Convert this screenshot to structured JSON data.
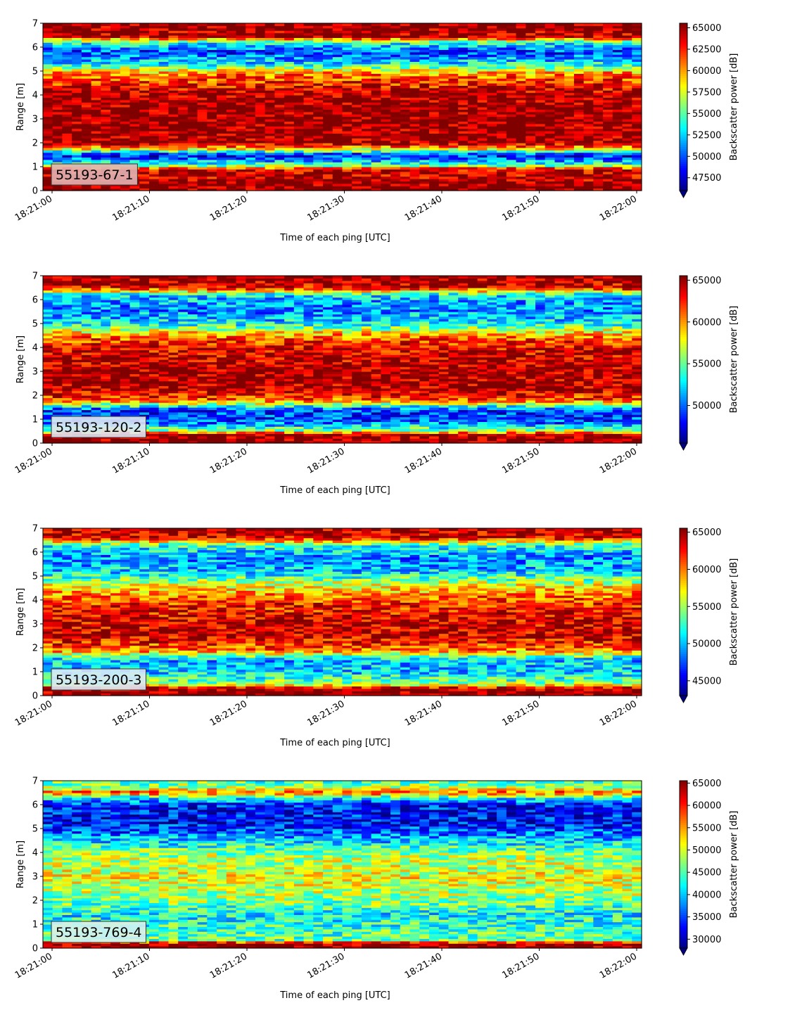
{
  "chart_data": [
    {
      "type": "heatmap",
      "panel_label": "55193-67-1",
      "label_box_color": "#e2b2b2",
      "xlabel": "Time of each ping [UTC]",
      "ylabel": "Range [m]",
      "x_ticks": [
        "18:21:00",
        "18:21:10",
        "18:21:20",
        "18:21:30",
        "18:21:40",
        "18:21:50",
        "18:22:00"
      ],
      "x_range": [
        "18:21:00",
        "18:22:00"
      ],
      "ylim": [
        0,
        7
      ],
      "y_ticks": [
        "0",
        "1",
        "2",
        "3",
        "4",
        "5",
        "6",
        "7"
      ],
      "colorbar": {
        "label": "Backscatter power [dB]",
        "colormap": "jet",
        "range": [
          46000,
          65535
        ],
        "ticks": [
          "47500",
          "50000",
          "52500",
          "55000",
          "57500",
          "60000",
          "62500",
          "65000"
        ],
        "extend": "min"
      },
      "range_profile": [
        {
          "range": 0.0,
          "value": 65535
        },
        {
          "range": 0.25,
          "value": 65535
        },
        {
          "range": 0.5,
          "value": 64500
        },
        {
          "range": 0.9,
          "value": 64000
        },
        {
          "range": 1.05,
          "value": 56000
        },
        {
          "range": 1.2,
          "value": 52500
        },
        {
          "range": 1.5,
          "value": 48500
        },
        {
          "range": 1.75,
          "value": 58500
        },
        {
          "range": 2.0,
          "value": 65000
        },
        {
          "range": 3.0,
          "value": 65500
        },
        {
          "range": 4.0,
          "value": 65000
        },
        {
          "range": 4.5,
          "value": 62500
        },
        {
          "range": 4.9,
          "value": 60500
        },
        {
          "range": 5.3,
          "value": 53500
        },
        {
          "range": 5.8,
          "value": 49500
        },
        {
          "range": 6.2,
          "value": 54000
        },
        {
          "range": 6.45,
          "value": 64500
        },
        {
          "range": 7.0,
          "value": 65535
        }
      ]
    },
    {
      "type": "heatmap",
      "panel_label": "55193-120-2",
      "label_box_color": "#dfe6f3",
      "xlabel": "Time of each ping [UTC]",
      "ylabel": "Range [m]",
      "x_ticks": [
        "18:21:00",
        "18:21:10",
        "18:21:20",
        "18:21:30",
        "18:21:40",
        "18:21:50",
        "18:22:00"
      ],
      "x_range": [
        "18:21:00",
        "18:22:00"
      ],
      "ylim": [
        0,
        7
      ],
      "y_ticks": [
        "0",
        "1",
        "2",
        "3",
        "4",
        "5",
        "6",
        "7"
      ],
      "colorbar": {
        "label": "Backscatter power [dB]",
        "colormap": "jet",
        "range": [
          45500,
          65535
        ],
        "ticks": [
          "50000",
          "55000",
          "60000",
          "65000"
        ],
        "extend": "min"
      },
      "range_profile": [
        {
          "range": 0.0,
          "value": 65535
        },
        {
          "range": 0.35,
          "value": 65000
        },
        {
          "range": 0.55,
          "value": 56000
        },
        {
          "range": 0.9,
          "value": 49500
        },
        {
          "range": 1.4,
          "value": 49000
        },
        {
          "range": 1.8,
          "value": 61000
        },
        {
          "range": 2.2,
          "value": 64500
        },
        {
          "range": 3.0,
          "value": 65000
        },
        {
          "range": 4.0,
          "value": 63500
        },
        {
          "range": 4.5,
          "value": 60500
        },
        {
          "range": 5.0,
          "value": 53000
        },
        {
          "range": 5.6,
          "value": 50500
        },
        {
          "range": 6.2,
          "value": 52500
        },
        {
          "range": 6.5,
          "value": 63500
        },
        {
          "range": 7.0,
          "value": 65535
        }
      ]
    },
    {
      "type": "heatmap",
      "panel_label": "55193-200-3",
      "label_box_color": "#d9e9f6",
      "xlabel": "Time of each ping [UTC]",
      "ylabel": "Range [m]",
      "x_ticks": [
        "18:21:00",
        "18:21:10",
        "18:21:20",
        "18:21:30",
        "18:21:40",
        "18:21:50",
        "18:22:00"
      ],
      "x_range": [
        "18:21:00",
        "18:22:00"
      ],
      "ylim": [
        0,
        7
      ],
      "y_ticks": [
        "0",
        "1",
        "2",
        "3",
        "4",
        "5",
        "6",
        "7"
      ],
      "colorbar": {
        "label": "Backscatter power [dB]",
        "colormap": "jet",
        "range": [
          43000,
          65535
        ],
        "ticks": [
          "45000",
          "50000",
          "55000",
          "60000",
          "65000"
        ],
        "extend": "min"
      },
      "range_profile": [
        {
          "range": 0.0,
          "value": 65535
        },
        {
          "range": 0.3,
          "value": 65000
        },
        {
          "range": 0.5,
          "value": 55000
        },
        {
          "range": 1.0,
          "value": 50500
        },
        {
          "range": 1.5,
          "value": 50000
        },
        {
          "range": 1.9,
          "value": 60000
        },
        {
          "range": 2.5,
          "value": 64000
        },
        {
          "range": 3.2,
          "value": 63500
        },
        {
          "range": 4.0,
          "value": 61500
        },
        {
          "range": 4.6,
          "value": 57000
        },
        {
          "range": 5.2,
          "value": 50500
        },
        {
          "range": 5.8,
          "value": 49000
        },
        {
          "range": 6.3,
          "value": 52500
        },
        {
          "range": 6.6,
          "value": 63000
        },
        {
          "range": 7.0,
          "value": 65000
        }
      ]
    },
    {
      "type": "heatmap",
      "panel_label": "55193-769-4",
      "label_box_color": "#d6f1ee",
      "xlabel": "Time of each ping [UTC]",
      "ylabel": "Range [m]",
      "x_ticks": [
        "18:21:00",
        "18:21:10",
        "18:21:20",
        "18:21:30",
        "18:21:40",
        "18:21:50",
        "18:22:00"
      ],
      "x_range": [
        "18:21:00",
        "18:22:00"
      ],
      "ylim": [
        0,
        7
      ],
      "y_ticks": [
        "0",
        "1",
        "2",
        "3",
        "4",
        "5",
        "6",
        "7"
      ],
      "colorbar": {
        "label": "Backscatter power [dB]",
        "colormap": "jet",
        "range": [
          28000,
          65535
        ],
        "ticks": [
          "30000",
          "35000",
          "40000",
          "45000",
          "50000",
          "55000",
          "60000",
          "65000"
        ],
        "extend": "min"
      },
      "range_profile": [
        {
          "range": 0.0,
          "value": 65535
        },
        {
          "range": 0.2,
          "value": 65000
        },
        {
          "range": 0.35,
          "value": 46000
        },
        {
          "range": 0.9,
          "value": 44000
        },
        {
          "range": 1.4,
          "value": 42000
        },
        {
          "range": 2.0,
          "value": 47000
        },
        {
          "range": 3.0,
          "value": 51000
        },
        {
          "range": 4.0,
          "value": 47500
        },
        {
          "range": 4.6,
          "value": 39000
        },
        {
          "range": 5.2,
          "value": 33000
        },
        {
          "range": 6.0,
          "value": 33500
        },
        {
          "range": 6.3,
          "value": 42000
        },
        {
          "range": 6.5,
          "value": 58000
        },
        {
          "range": 6.75,
          "value": 48000
        },
        {
          "range": 7.0,
          "value": 45000
        }
      ]
    }
  ]
}
